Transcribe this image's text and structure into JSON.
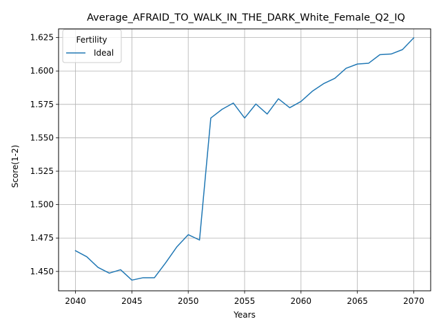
{
  "chart_data": {
    "type": "line",
    "title": "Average_AFRAID_TO_WALK_IN_THE_DARK_White_Female_Q2_IQ",
    "xlabel": "Years",
    "ylabel": "Score(1-2)",
    "xlim": [
      2038.5,
      2071.5
    ],
    "ylim": [
      1.4355,
      1.6315
    ],
    "xticks": [
      2040,
      2045,
      2050,
      2055,
      2060,
      2065,
      2070
    ],
    "yticks": [
      1.45,
      1.475,
      1.5,
      1.525,
      1.55,
      1.575,
      1.6,
      1.625
    ],
    "xtick_labels": [
      "2040",
      "2045",
      "2050",
      "2055",
      "2060",
      "2065",
      "2070"
    ],
    "ytick_labels": [
      "1.450",
      "1.475",
      "1.500",
      "1.525",
      "1.550",
      "1.575",
      "1.600",
      "1.625"
    ],
    "grid": true,
    "legend": {
      "title": "Fertility",
      "placement": "top-left"
    },
    "series": [
      {
        "name": "Ideal",
        "color": "#1f77b4",
        "x": [
          2040,
          2041,
          2042,
          2043,
          2044,
          2045,
          2046,
          2047,
          2048,
          2049,
          2050,
          2051,
          2052,
          2053,
          2054,
          2055,
          2056,
          2057,
          2058,
          2059,
          2060,
          2061,
          2062,
          2063,
          2064,
          2065,
          2066,
          2067,
          2068,
          2069,
          2070
        ],
        "y": [
          1.4655,
          1.461,
          1.453,
          1.4487,
          1.4513,
          1.4435,
          1.4453,
          1.4453,
          1.4565,
          1.4685,
          1.4775,
          1.4735,
          1.5648,
          1.5713,
          1.576,
          1.5648,
          1.5753,
          1.5678,
          1.5792,
          1.5725,
          1.5772,
          1.5848,
          1.5905,
          1.5945,
          1.602,
          1.6052,
          1.6058,
          1.6122,
          1.6127,
          1.616,
          1.6248
        ]
      }
    ]
  }
}
